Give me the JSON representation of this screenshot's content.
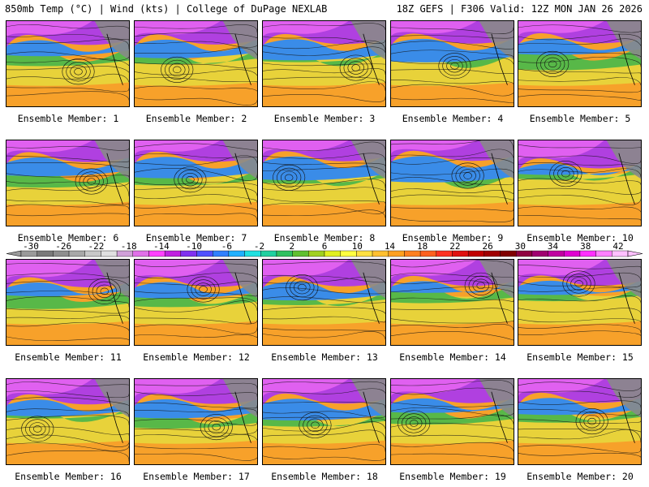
{
  "header": {
    "left": "850mb Temp (°C) | Wind (kts) | College of DuPage NEXLAB",
    "right": "18Z GEFS | F306 Valid: 12Z MON JAN 26 2026"
  },
  "members": [
    "Ensemble Member: 1",
    "Ensemble Member: 2",
    "Ensemble Member: 3",
    "Ensemble Member: 4",
    "Ensemble Member: 5",
    "Ensemble Member: 6",
    "Ensemble Member: 7",
    "Ensemble Member: 8",
    "Ensemble Member: 9",
    "Ensemble Member: 10",
    "Ensemble Member: 11",
    "Ensemble Member: 12",
    "Ensemble Member: 13",
    "Ensemble Member: 14",
    "Ensemble Member: 15",
    "Ensemble Member: 16",
    "Ensemble Member: 17",
    "Ensemble Member: 18",
    "Ensemble Member: 19",
    "Ensemble Member: 20"
  ],
  "colorbar": {
    "ticks": [
      "-30",
      "-26",
      "-22",
      "-18",
      "-14",
      "-10",
      "-6",
      "-2",
      "2",
      "6",
      "10",
      "14",
      "18",
      "22",
      "26",
      "30",
      "34",
      "38",
      "42"
    ],
    "colors": [
      "#9a9a9a",
      "#7a7a7a",
      "#8e8e8e",
      "#a8a8a8",
      "#c8c8c8",
      "#e0e0e0",
      "#d0a0d8",
      "#e070e8",
      "#ff40ff",
      "#c020e0",
      "#8030f0",
      "#5050ff",
      "#3080ff",
      "#20b0ff",
      "#20e0e0",
      "#20d0a0",
      "#30c060",
      "#60c030",
      "#a0d020",
      "#e0f020",
      "#ffff40",
      "#ffe040",
      "#ffc030",
      "#ffa020",
      "#ff8020",
      "#ff6020",
      "#ff3020",
      "#e01010",
      "#c00000",
      "#a00000",
      "#800000",
      "#900040",
      "#a00070",
      "#c000a0",
      "#e000d0",
      "#ff30ff",
      "#ff80ff",
      "#ffc0ff"
    ]
  }
}
